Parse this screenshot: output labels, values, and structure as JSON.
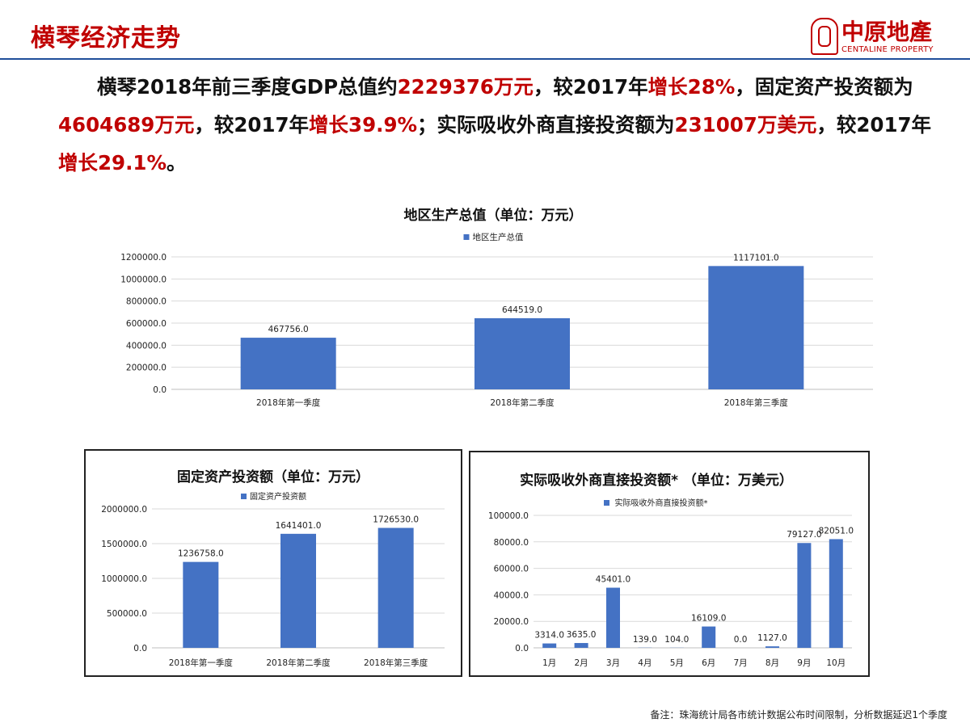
{
  "header": {
    "title": "横琴经济走势",
    "logo_cn": "中原地產",
    "logo_en": "CENTALINE PROPERTY"
  },
  "summary": {
    "parts": [
      {
        "text": "横琴2018年前三季度GDP总值约",
        "hl": false
      },
      {
        "text": "2229376万元",
        "hl": true
      },
      {
        "text": "，较2017年",
        "hl": false
      },
      {
        "text": "增长28%",
        "hl": true
      },
      {
        "text": "，固定资产投资额为",
        "hl": false
      },
      {
        "text": "4604689万元",
        "hl": true
      },
      {
        "text": "，较2017年",
        "hl": false
      },
      {
        "text": "增长39.9%",
        "hl": true
      },
      {
        "text": "；实际吸收外商直接投资额为",
        "hl": false
      },
      {
        "text": "231007万美元",
        "hl": true
      },
      {
        "text": "，较2017年",
        "hl": false
      },
      {
        "text": "增长29.1%",
        "hl": true
      },
      {
        "text": "。",
        "hl": false
      }
    ]
  },
  "chart_data": [
    {
      "type": "bar",
      "title": "地区生产总值（单位：万元）",
      "legend": "地区生产总值",
      "legend_position": "top",
      "grid": true,
      "categories": [
        "2018年第一季度",
        "2018年第二季度",
        "2018年第三季度"
      ],
      "values": [
        467756.0,
        644519.0,
        1117101.0
      ],
      "labels": [
        "467756.0",
        "644519.0",
        "1117101.0"
      ],
      "yticks": [
        "0.0",
        "200000.0",
        "400000.0",
        "600000.0",
        "800000.0",
        "1000000.0",
        "1200000.0"
      ],
      "ylim": [
        0,
        1200000
      ],
      "color": "#4472c4"
    },
    {
      "type": "bar",
      "title": "固定资产投资额（单位：万元）",
      "legend": "固定资产投资额",
      "legend_position": "top",
      "grid": true,
      "categories": [
        "2018年第一季度",
        "2018年第二季度",
        "2018年第三季度"
      ],
      "values": [
        1236758.0,
        1641401.0,
        1726530.0
      ],
      "labels": [
        "1236758.0",
        "1641401.0",
        "1726530.0"
      ],
      "yticks": [
        "0.0",
        "500000.0",
        "1000000.0",
        "1500000.0",
        "2000000.0"
      ],
      "ylim": [
        0,
        2000000
      ],
      "color": "#4472c4"
    },
    {
      "type": "bar",
      "title": "实际吸收外商直接投资额*  （单位：万美元）",
      "legend": "实际吸收外商直接投资额*",
      "legend_position": "top",
      "grid": true,
      "categories": [
        "1月",
        "2月",
        "3月",
        "4月",
        "5月",
        "6月",
        "7月",
        "8月",
        "9月",
        "10月"
      ],
      "values": [
        3314.0,
        3635.0,
        45401.0,
        139.0,
        104.0,
        16109.0,
        0.0,
        1127.0,
        79127.0,
        82051.0
      ],
      "labels": [
        "3314.0",
        "3635.0",
        "45401.0",
        "139.0",
        "104.0",
        "16109.0",
        "0.0",
        "1127.0",
        "79127.0",
        "82051.0"
      ],
      "yticks": [
        "0.0",
        "20000.0",
        "40000.0",
        "60000.0",
        "80000.0",
        "100000.0"
      ],
      "ylim": [
        0,
        100000
      ],
      "color": "#4472c4"
    }
  ],
  "footer": {
    "note": "备注：珠海统计局各市统计数据公布时间限制，分析数据延迟1个季度"
  }
}
